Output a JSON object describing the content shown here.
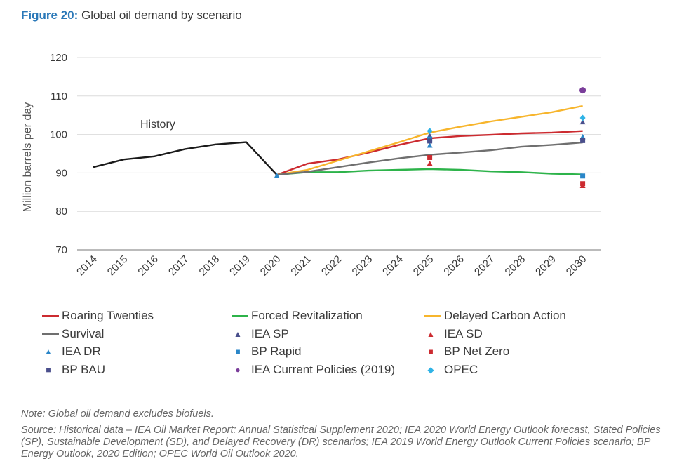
{
  "figure": {
    "label": "Figure 20:",
    "title": "Global oil demand by scenario"
  },
  "chart_data": {
    "type": "line",
    "title": "Global oil demand by scenario",
    "xlabel": "",
    "ylabel": "Million barrels per day",
    "ylim": [
      70,
      120
    ],
    "yticks": [
      70,
      80,
      90,
      100,
      110,
      120
    ],
    "xticks": [
      "2014",
      "2015",
      "2016",
      "2017",
      "2018",
      "2019",
      "2020",
      "2021",
      "2022",
      "2023",
      "2024",
      "2025",
      "2026",
      "2027",
      "2028",
      "2029",
      "2030"
    ],
    "annotation": "History",
    "series": [
      {
        "name": "History",
        "color": "#1a1a1a",
        "x": [
          2014,
          2015,
          2016,
          2017,
          2018,
          2019,
          2020
        ],
        "values": [
          91.5,
          93.5,
          94.3,
          96.2,
          97.4,
          98.0,
          89.5
        ]
      },
      {
        "name": "Roaring Twenties",
        "color": "#cc2b30",
        "x": [
          2020,
          2021,
          2022,
          2023,
          2024,
          2025,
          2026,
          2027,
          2028,
          2029,
          2030
        ],
        "values": [
          89.5,
          92.4,
          93.5,
          95.3,
          97.3,
          99.0,
          99.6,
          99.9,
          100.3,
          100.5,
          100.9
        ]
      },
      {
        "name": "Forced Revitalization",
        "color": "#2db34a",
        "x": [
          2020,
          2021,
          2022,
          2023,
          2024,
          2025,
          2026,
          2027,
          2028,
          2029,
          2030
        ],
        "values": [
          89.5,
          90.2,
          90.2,
          90.6,
          90.8,
          91.0,
          90.8,
          90.4,
          90.2,
          89.8,
          89.6
        ]
      },
      {
        "name": "Delayed Carbon Action",
        "color": "#f7b52c",
        "x": [
          2020,
          2021,
          2022,
          2023,
          2024,
          2025,
          2026,
          2027,
          2028,
          2029,
          2030
        ],
        "values": [
          89.5,
          90.8,
          93.2,
          95.6,
          98.0,
          100.5,
          102.0,
          103.4,
          104.6,
          105.8,
          107.4
        ]
      },
      {
        "name": "Survival",
        "color": "#6f6f6f",
        "x": [
          2020,
          2021,
          2022,
          2023,
          2024,
          2025,
          2026,
          2027,
          2028,
          2029,
          2030
        ],
        "values": [
          89.5,
          90.3,
          91.5,
          92.7,
          93.8,
          94.7,
          95.3,
          95.9,
          96.8,
          97.3,
          97.9
        ]
      }
    ],
    "markers": [
      {
        "name": "IEA SP",
        "shape": "triangle",
        "color": "#4a4f8c",
        "points": [
          [
            2025,
            99.6
          ],
          [
            2030,
            103.2
          ]
        ]
      },
      {
        "name": "IEA SD",
        "shape": "triangle",
        "color": "#cc2b30",
        "points": [
          [
            2025,
            92.4
          ],
          [
            2030,
            86.6
          ]
        ]
      },
      {
        "name": "IEA DR",
        "shape": "triangle",
        "color": "#2a86c8",
        "points": [
          [
            2020,
            89.2
          ],
          [
            2025,
            97.1
          ],
          [
            2030,
            99.3
          ]
        ]
      },
      {
        "name": "BP Rapid",
        "shape": "square",
        "color": "#2a86c8",
        "points": [
          [
            2025,
            98.8
          ],
          [
            2030,
            89.2
          ]
        ]
      },
      {
        "name": "BP Net Zero",
        "shape": "square",
        "color": "#cc2b30",
        "points": [
          [
            2025,
            94.0
          ],
          [
            2030,
            87.2
          ]
        ]
      },
      {
        "name": "BP BAU",
        "shape": "square",
        "color": "#4a4f8c",
        "points": [
          [
            2025,
            98.3
          ],
          [
            2030,
            98.4
          ]
        ]
      },
      {
        "name": "IEA Current Policies (2019)",
        "shape": "circle",
        "color": "#7a3d9a",
        "points": [
          [
            2030,
            111.5
          ]
        ]
      },
      {
        "name": "OPEC",
        "shape": "diamond",
        "color": "#2fb3e6",
        "points": [
          [
            2025,
            100.9
          ],
          [
            2030,
            104.3
          ]
        ]
      }
    ]
  },
  "legend": {
    "items": [
      {
        "label": "Roaring Twenties",
        "kind": "line",
        "color": "#cc2b30"
      },
      {
        "label": "Forced Revitalization",
        "kind": "line",
        "color": "#2db34a"
      },
      {
        "label": "Delayed Carbon Action",
        "kind": "line",
        "color": "#f7b52c"
      },
      {
        "label": "Survival",
        "kind": "line",
        "color": "#6f6f6f"
      },
      {
        "label": "IEA SP",
        "kind": "marker",
        "glyph": "▲",
        "color": "#4a4f8c"
      },
      {
        "label": "IEA SD",
        "kind": "marker",
        "glyph": "▲",
        "color": "#cc2b30"
      },
      {
        "label": "IEA DR",
        "kind": "marker",
        "glyph": "▲",
        "color": "#2a86c8"
      },
      {
        "label": "BP Rapid",
        "kind": "marker",
        "glyph": "■",
        "color": "#2a86c8"
      },
      {
        "label": "BP Net Zero",
        "kind": "marker",
        "glyph": "■",
        "color": "#cc2b30"
      },
      {
        "label": "BP BAU",
        "kind": "marker",
        "glyph": "■",
        "color": "#4a4f8c"
      },
      {
        "label": "IEA Current Policies (2019)",
        "kind": "marker",
        "glyph": "●",
        "color": "#7a3d9a"
      },
      {
        "label": "OPEC",
        "kind": "marker",
        "glyph": "◆",
        "color": "#2fb3e6"
      }
    ]
  },
  "notes": {
    "note": "Note: Global oil demand excludes biofuels.",
    "source": "Source: Historical data – IEA Oil Market Report: Annual Statistical Supplement 2020; IEA 2020 World Energy Outlook forecast, Stated Policies (SP), Sustainable Development (SD), and Delayed Recovery (DR) scenarios; IEA 2019 World Energy Outlook Current Policies scenario; BP Energy Outlook, 2020 Edition; OPEC World Oil Outlook 2020."
  }
}
